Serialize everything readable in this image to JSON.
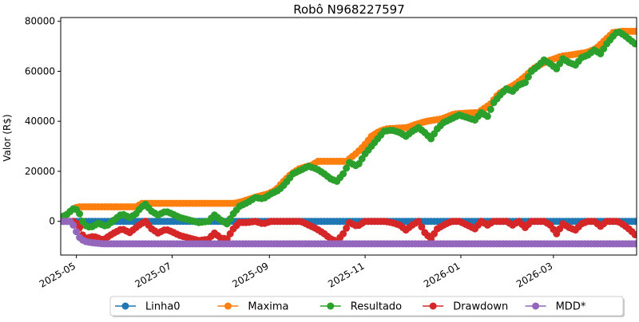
{
  "chart_data": {
    "type": "line",
    "title": "Robô N968227597",
    "xlabel": "",
    "ylabel": "Valor (R$)",
    "xlim": [
      "2025-04-21",
      "2026-04-23"
    ],
    "ylim": [
      -13500,
      81500
    ],
    "x_ticks": [
      "2025-05",
      "2025-07",
      "2025-09",
      "2025-11",
      "2026-01",
      "2026-03"
    ],
    "y_ticks": [
      0,
      20000,
      40000,
      60000,
      80000
    ],
    "y_tick_labels": [
      "0",
      "20000",
      "40000",
      "60000",
      "80000"
    ],
    "grid": false,
    "legend_position": "bottom",
    "markers": "circle",
    "series": [
      {
        "name": "Linha0",
        "color": "#1f77b4",
        "points": [
          [
            "2025-04-21",
            0
          ],
          [
            "2026-04-23",
            0
          ]
        ]
      },
      {
        "name": "Maxima",
        "color": "#ff7f0e",
        "points": [
          [
            "2025-04-21",
            0
          ],
          [
            "2025-04-25",
            2800
          ],
          [
            "2025-04-29",
            5000
          ],
          [
            "2025-05-02",
            5800
          ],
          [
            "2025-06-08",
            5800
          ],
          [
            "2025-06-12",
            7200
          ],
          [
            "2025-08-10",
            7200
          ],
          [
            "2025-08-15",
            8000
          ],
          [
            "2025-08-20",
            9000
          ],
          [
            "2025-08-25",
            10000
          ],
          [
            "2025-08-31",
            11000
          ],
          [
            "2025-09-05",
            12500
          ],
          [
            "2025-09-10",
            16000
          ],
          [
            "2025-09-15",
            19000
          ],
          [
            "2025-09-20",
            21000
          ],
          [
            "2025-09-28",
            22500
          ],
          [
            "2025-10-02",
            24000
          ],
          [
            "2025-10-20",
            24000
          ],
          [
            "2025-10-26",
            27000
          ],
          [
            "2025-10-31",
            30000
          ],
          [
            "2025-11-05",
            34000
          ],
          [
            "2025-11-10",
            36000
          ],
          [
            "2025-11-15",
            37000
          ],
          [
            "2025-11-28",
            37500
          ],
          [
            "2025-12-02",
            38500
          ],
          [
            "2025-12-10",
            40000
          ],
          [
            "2025-12-20",
            41000
          ],
          [
            "2025-12-28",
            43000
          ],
          [
            "2026-01-12",
            43500
          ],
          [
            "2026-01-20",
            47000
          ],
          [
            "2026-01-25",
            51000
          ],
          [
            "2026-02-01",
            53500
          ],
          [
            "2026-02-05",
            55000
          ],
          [
            "2026-02-11",
            58000
          ],
          [
            "2026-02-16",
            61000
          ],
          [
            "2026-02-20",
            62500
          ],
          [
            "2026-02-25",
            64000
          ],
          [
            "2026-03-06",
            66000
          ],
          [
            "2026-03-22",
            67500
          ],
          [
            "2026-03-28",
            69000
          ],
          [
            "2026-04-02",
            72000
          ],
          [
            "2026-04-08",
            75500
          ],
          [
            "2026-04-14",
            76000
          ],
          [
            "2026-04-23",
            76000
          ]
        ]
      },
      {
        "name": "Resultado",
        "color": "#2ca02c",
        "points": [
          [
            "2025-04-21",
            1500
          ],
          [
            "2025-04-25",
            2800
          ],
          [
            "2025-04-28",
            4500
          ],
          [
            "2025-04-30",
            5500
          ],
          [
            "2025-05-03",
            3000
          ],
          [
            "2025-05-06",
            -1500
          ],
          [
            "2025-05-10",
            -2500
          ],
          [
            "2025-05-15",
            -800
          ],
          [
            "2025-05-20",
            -2000
          ],
          [
            "2025-05-25",
            500
          ],
          [
            "2025-05-30",
            3000
          ],
          [
            "2025-06-04",
            1500
          ],
          [
            "2025-06-08",
            3000
          ],
          [
            "2025-06-11",
            5500
          ],
          [
            "2025-06-14",
            6800
          ],
          [
            "2025-06-18",
            4000
          ],
          [
            "2025-06-22",
            2500
          ],
          [
            "2025-06-27",
            4000
          ],
          [
            "2025-07-01",
            3000
          ],
          [
            "2025-07-06",
            1500
          ],
          [
            "2025-07-12",
            500
          ],
          [
            "2025-07-18",
            -500
          ],
          [
            "2025-07-24",
            0
          ],
          [
            "2025-07-28",
            2500
          ],
          [
            "2025-08-01",
            500
          ],
          [
            "2025-08-05",
            -1000
          ],
          [
            "2025-08-09",
            3000
          ],
          [
            "2025-08-13",
            6000
          ],
          [
            "2025-08-18",
            7500
          ],
          [
            "2025-08-23",
            9500
          ],
          [
            "2025-08-28",
            9000
          ],
          [
            "2025-09-02",
            11000
          ],
          [
            "2025-09-07",
            12500
          ],
          [
            "2025-09-11",
            15000
          ],
          [
            "2025-09-16",
            19000
          ],
          [
            "2025-09-21",
            20500
          ],
          [
            "2025-09-26",
            22000
          ],
          [
            "2025-10-01",
            21000
          ],
          [
            "2025-10-06",
            19000
          ],
          [
            "2025-10-10",
            17000
          ],
          [
            "2025-10-14",
            16000
          ],
          [
            "2025-10-18",
            19000
          ],
          [
            "2025-10-22",
            23500
          ],
          [
            "2025-10-27",
            22000
          ],
          [
            "2025-11-01",
            27000
          ],
          [
            "2025-11-05",
            30000
          ],
          [
            "2025-11-09",
            33000
          ],
          [
            "2025-11-13",
            36000
          ],
          [
            "2025-11-18",
            36500
          ],
          [
            "2025-11-23",
            35500
          ],
          [
            "2025-11-27",
            34000
          ],
          [
            "2025-12-01",
            36000
          ],
          [
            "2025-12-05",
            37500
          ],
          [
            "2025-12-09",
            35500
          ],
          [
            "2025-12-13",
            33000
          ],
          [
            "2025-12-17",
            37000
          ],
          [
            "2025-12-21",
            39500
          ],
          [
            "2025-12-26",
            41000
          ],
          [
            "2025-12-31",
            42500
          ],
          [
            "2026-01-05",
            41500
          ],
          [
            "2026-01-10",
            40500
          ],
          [
            "2026-01-14",
            43500
          ],
          [
            "2026-01-18",
            42000
          ],
          [
            "2026-01-22",
            47500
          ],
          [
            "2026-01-26",
            50500
          ],
          [
            "2026-01-30",
            53000
          ],
          [
            "2026-02-03",
            52000
          ],
          [
            "2026-02-07",
            54500
          ],
          [
            "2026-02-11",
            55500
          ],
          [
            "2026-02-15",
            60000
          ],
          [
            "2026-02-19",
            62000
          ],
          [
            "2026-02-23",
            64500
          ],
          [
            "2026-02-27",
            63000
          ],
          [
            "2026-03-03",
            61000
          ],
          [
            "2026-03-07",
            65000
          ],
          [
            "2026-03-11",
            63500
          ],
          [
            "2026-03-15",
            62500
          ],
          [
            "2026-03-19",
            65500
          ],
          [
            "2026-03-23",
            66500
          ],
          [
            "2026-03-27",
            68500
          ],
          [
            "2026-03-31",
            67000
          ],
          [
            "2026-04-04",
            71000
          ],
          [
            "2026-04-08",
            74000
          ],
          [
            "2026-04-11",
            76000
          ],
          [
            "2026-04-15",
            74500
          ],
          [
            "2026-04-19",
            72500
          ],
          [
            "2026-04-23",
            70500
          ]
        ]
      },
      {
        "name": "Drawdown",
        "color": "#d62728",
        "points": [
          [
            "2025-04-21",
            0
          ],
          [
            "2025-04-30",
            0
          ],
          [
            "2025-05-03",
            -2500
          ],
          [
            "2025-05-06",
            -7000
          ],
          [
            "2025-05-12",
            -6000
          ],
          [
            "2025-05-18",
            -7500
          ],
          [
            "2025-05-24",
            -5000
          ],
          [
            "2025-05-30",
            -3000
          ],
          [
            "2025-06-04",
            -4500
          ],
          [
            "2025-06-10",
            -1500
          ],
          [
            "2025-06-14",
            0
          ],
          [
            "2025-06-18",
            -3000
          ],
          [
            "2025-06-22",
            -4700
          ],
          [
            "2025-06-27",
            -3200
          ],
          [
            "2025-07-01",
            -4200
          ],
          [
            "2025-07-06",
            -5700
          ],
          [
            "2025-07-12",
            -6700
          ],
          [
            "2025-07-18",
            -7700
          ],
          [
            "2025-07-24",
            -7200
          ],
          [
            "2025-07-28",
            -4700
          ],
          [
            "2025-08-01",
            -6700
          ],
          [
            "2025-08-05",
            -7000
          ],
          [
            "2025-08-09",
            -3000
          ],
          [
            "2025-08-13",
            -500
          ],
          [
            "2025-08-18",
            -500
          ],
          [
            "2025-08-23",
            0
          ],
          [
            "2025-08-28",
            -1000
          ],
          [
            "2025-09-02",
            0
          ],
          [
            "2025-09-07",
            0
          ],
          [
            "2025-09-16",
            0
          ],
          [
            "2025-09-21",
            0
          ],
          [
            "2025-10-01",
            -3000
          ],
          [
            "2025-10-06",
            -5000
          ],
          [
            "2025-10-10",
            -7000
          ],
          [
            "2025-10-14",
            -8000
          ],
          [
            "2025-10-18",
            -5000
          ],
          [
            "2025-10-22",
            -500
          ],
          [
            "2025-10-27",
            -2000
          ],
          [
            "2025-11-01",
            0
          ],
          [
            "2025-11-13",
            0
          ],
          [
            "2025-11-18",
            -500
          ],
          [
            "2025-11-23",
            -1500
          ],
          [
            "2025-11-27",
            -3500
          ],
          [
            "2025-12-01",
            -1500
          ],
          [
            "2025-12-05",
            0
          ],
          [
            "2025-12-09",
            -4500
          ],
          [
            "2025-12-13",
            -7000
          ],
          [
            "2025-12-17",
            -3000
          ],
          [
            "2025-12-21",
            -1500
          ],
          [
            "2025-12-26",
            0
          ],
          [
            "2025-12-31",
            0
          ],
          [
            "2026-01-05",
            -1500
          ],
          [
            "2026-01-10",
            -3000
          ],
          [
            "2026-01-14",
            0
          ],
          [
            "2026-01-18",
            -1500
          ],
          [
            "2026-01-22",
            0
          ],
          [
            "2026-01-30",
            0
          ],
          [
            "2026-02-03",
            -1500
          ],
          [
            "2026-02-07",
            0
          ],
          [
            "2026-02-11",
            -2500
          ],
          [
            "2026-02-15",
            0
          ],
          [
            "2026-02-23",
            0
          ],
          [
            "2026-02-27",
            -1500
          ],
          [
            "2026-03-03",
            -5000
          ],
          [
            "2026-03-07",
            -1000
          ],
          [
            "2026-03-11",
            -2500
          ],
          [
            "2026-03-15",
            -3500
          ],
          [
            "2026-03-19",
            -1000
          ],
          [
            "2026-03-23",
            0
          ],
          [
            "2026-03-27",
            0
          ],
          [
            "2026-03-31",
            -2000
          ],
          [
            "2026-04-04",
            0
          ],
          [
            "2026-04-11",
            0
          ],
          [
            "2026-04-15",
            -1500
          ],
          [
            "2026-04-19",
            -3500
          ],
          [
            "2026-04-23",
            -6000
          ]
        ]
      },
      {
        "name": "MDD*",
        "color": "#9467bd",
        "points": [
          [
            "2025-04-21",
            0
          ],
          [
            "2025-04-28",
            0
          ],
          [
            "2025-04-30",
            -3000
          ],
          [
            "2025-05-03",
            -6500
          ],
          [
            "2025-05-06",
            -8000
          ],
          [
            "2025-05-10",
            -8500
          ],
          [
            "2025-05-18",
            -9000
          ],
          [
            "2026-04-23",
            -9000
          ]
        ]
      }
    ]
  }
}
